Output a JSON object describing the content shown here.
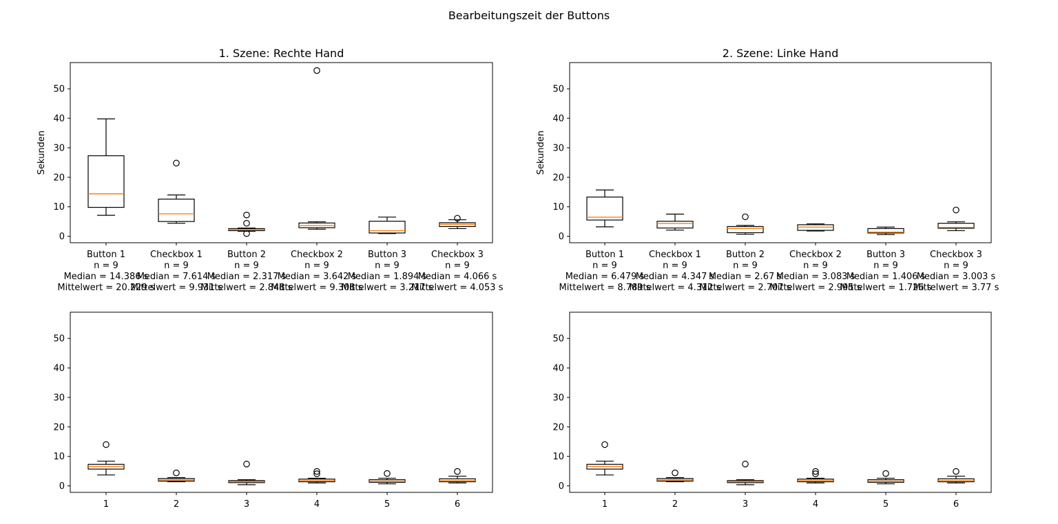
{
  "figure": {
    "title": "Bearbeitungszeit der Buttons"
  },
  "colors": {
    "box": "#000000",
    "median": "#ff7f0e",
    "flier": "#000000",
    "frame": "#000000"
  },
  "chart_data": [
    {
      "type": "boxplot",
      "title": "1. Szene: Rechte Hand",
      "ylabel": "Sekunden",
      "ylim": [
        -2.2,
        58.9
      ],
      "yticks": [
        0,
        10,
        20,
        30,
        40,
        50
      ],
      "categories": [
        [
          "Button 1",
          "n = 9",
          "Median = 14.386 s",
          "Mittelwert = 20.229 s"
        ],
        [
          "Checkbox 1",
          "n = 9",
          "Median = 7.614 s",
          "Mittelwert = 9.931 s"
        ],
        [
          "Button 2",
          "n = 9",
          "Median = 2.317 s",
          "Mittelwert = 2.848 s"
        ],
        [
          "Checkbox 2",
          "n = 9",
          "Median = 3.642 s",
          "Mittelwert = 9.308 s"
        ],
        [
          "Button 3",
          "n = 9",
          "Median = 1.894 s",
          "Mittelwert = 3.217 s"
        ],
        [
          "Checkbox 3",
          "n = 9",
          "Median = 4.066 s",
          "Mittelwert = 4.053 s"
        ]
      ],
      "boxes": [
        {
          "whislo": 7.1,
          "q1": 9.8,
          "med": 14.386,
          "q3": 27.3,
          "whishi": 39.8,
          "fliers": []
        },
        {
          "whislo": 4.4,
          "q1": 5.0,
          "med": 7.614,
          "q3": 12.6,
          "whishi": 14.0,
          "fliers": [
            24.8
          ]
        },
        {
          "whislo": 1.7,
          "q1": 1.9,
          "med": 2.317,
          "q3": 2.6,
          "whishi": 2.8,
          "fliers": [
            7.2,
            4.4,
            0.9
          ]
        },
        {
          "whislo": 2.4,
          "q1": 2.9,
          "med": 3.642,
          "q3": 4.5,
          "whishi": 4.9,
          "fliers": [
            56.2
          ]
        },
        {
          "whislo": 0.9,
          "q1": 1.1,
          "med": 1.894,
          "q3": 5.1,
          "whishi": 6.5,
          "fliers": []
        },
        {
          "whislo": 2.6,
          "q1": 3.3,
          "med": 4.066,
          "q3": 4.6,
          "whishi": 5.6,
          "fliers": [
            6.1
          ]
        }
      ]
    },
    {
      "type": "boxplot",
      "title": "2. Szene: Linke Hand",
      "ylabel": "Sekunden",
      "ylim": [
        -2.2,
        58.9
      ],
      "yticks": [
        0,
        10,
        20,
        30,
        40,
        50
      ],
      "categories": [
        [
          "Button 1",
          "n = 9",
          "Median = 6.479 s",
          "Mittelwert = 8.789 s"
        ],
        [
          "Checkbox 1",
          "n = 9",
          "Median = 4.347 s",
          "Mittelwert = 4.312 s"
        ],
        [
          "Button 2",
          "n = 9",
          "Median = 2.67 s",
          "Mittelwert = 2.707 s"
        ],
        [
          "Checkbox 2",
          "n = 9",
          "Median = 3.083 s",
          "Mittelwert = 2.995 s"
        ],
        [
          "Button 3",
          "n = 9",
          "Median = 1.406 s",
          "Mittelwert = 1.726 s"
        ],
        [
          "Checkbox 3",
          "n = 9",
          "Median = 3.003 s",
          "Mittelwert = 3.77 s"
        ]
      ],
      "boxes": [
        {
          "whislo": 3.2,
          "q1": 5.5,
          "med": 6.479,
          "q3": 13.3,
          "whishi": 15.7,
          "fliers": []
        },
        {
          "whislo": 2.1,
          "q1": 2.8,
          "med": 4.347,
          "q3": 5.1,
          "whishi": 7.5,
          "fliers": []
        },
        {
          "whislo": 0.7,
          "q1": 1.2,
          "med": 2.67,
          "q3": 3.3,
          "whishi": 3.7,
          "fliers": [
            6.6
          ]
        },
        {
          "whislo": 1.8,
          "q1": 2.0,
          "med": 3.083,
          "q3": 3.9,
          "whishi": 4.2,
          "fliers": []
        },
        {
          "whislo": 0.6,
          "q1": 1.1,
          "med": 1.406,
          "q3": 2.6,
          "whishi": 3.1,
          "fliers": []
        },
        {
          "whislo": 1.9,
          "q1": 2.7,
          "med": 3.003,
          "q3": 4.4,
          "whishi": 4.9,
          "fliers": [
            8.9
          ]
        }
      ]
    },
    {
      "type": "boxplot",
      "title": "",
      "ylabel": "",
      "ylim": [
        -2.2,
        58.9
      ],
      "yticks": [
        0,
        10,
        20,
        30,
        40,
        50
      ],
      "categories": [
        [
          "1"
        ],
        [
          "2"
        ],
        [
          "3"
        ],
        [
          "4"
        ],
        [
          "5"
        ],
        [
          "6"
        ]
      ],
      "boxes": [
        {
          "whislo": 3.7,
          "q1": 5.7,
          "med": 6.6,
          "q3": 7.3,
          "whishi": 8.4,
          "fliers": [
            14.0
          ]
        },
        {
          "whislo": 1.4,
          "q1": 1.6,
          "med": 2.0,
          "q3": 2.5,
          "whishi": 2.8,
          "fliers": [
            4.4
          ]
        },
        {
          "whislo": 0.4,
          "q1": 1.1,
          "med": 1.5,
          "q3": 1.8,
          "whishi": 2.1,
          "fliers": [
            7.4
          ]
        },
        {
          "whislo": 1.0,
          "q1": 1.4,
          "med": 1.8,
          "q3": 2.3,
          "whishi": 2.6,
          "fliers": [
            4.9,
            4.1
          ]
        },
        {
          "whislo": 0.7,
          "q1": 1.2,
          "med": 1.6,
          "q3": 2.1,
          "whishi": 2.6,
          "fliers": [
            4.2
          ]
        },
        {
          "whislo": 1.0,
          "q1": 1.4,
          "med": 1.8,
          "q3": 2.4,
          "whishi": 3.3,
          "fliers": [
            4.9
          ]
        }
      ]
    },
    {
      "type": "boxplot",
      "title": "",
      "ylabel": "",
      "ylim": [
        -2.2,
        58.9
      ],
      "yticks": [
        0,
        10,
        20,
        30,
        40,
        50
      ],
      "categories": [
        [
          "1"
        ],
        [
          "2"
        ],
        [
          "3"
        ],
        [
          "4"
        ],
        [
          "5"
        ],
        [
          "6"
        ]
      ],
      "boxes": [
        {
          "whislo": 3.7,
          "q1": 5.7,
          "med": 6.6,
          "q3": 7.3,
          "whishi": 8.4,
          "fliers": [
            14.0
          ]
        },
        {
          "whislo": 1.4,
          "q1": 1.6,
          "med": 2.0,
          "q3": 2.5,
          "whishi": 2.8,
          "fliers": [
            4.4
          ]
        },
        {
          "whislo": 0.4,
          "q1": 1.1,
          "med": 1.5,
          "q3": 1.8,
          "whishi": 2.1,
          "fliers": [
            7.4
          ]
        },
        {
          "whislo": 1.0,
          "q1": 1.4,
          "med": 1.8,
          "q3": 2.3,
          "whishi": 2.6,
          "fliers": [
            4.9,
            4.1
          ]
        },
        {
          "whislo": 0.7,
          "q1": 1.2,
          "med": 1.6,
          "q3": 2.1,
          "whishi": 2.6,
          "fliers": [
            4.2
          ]
        },
        {
          "whislo": 1.0,
          "q1": 1.4,
          "med": 1.8,
          "q3": 2.4,
          "whishi": 3.3,
          "fliers": [
            4.9
          ]
        }
      ]
    }
  ]
}
